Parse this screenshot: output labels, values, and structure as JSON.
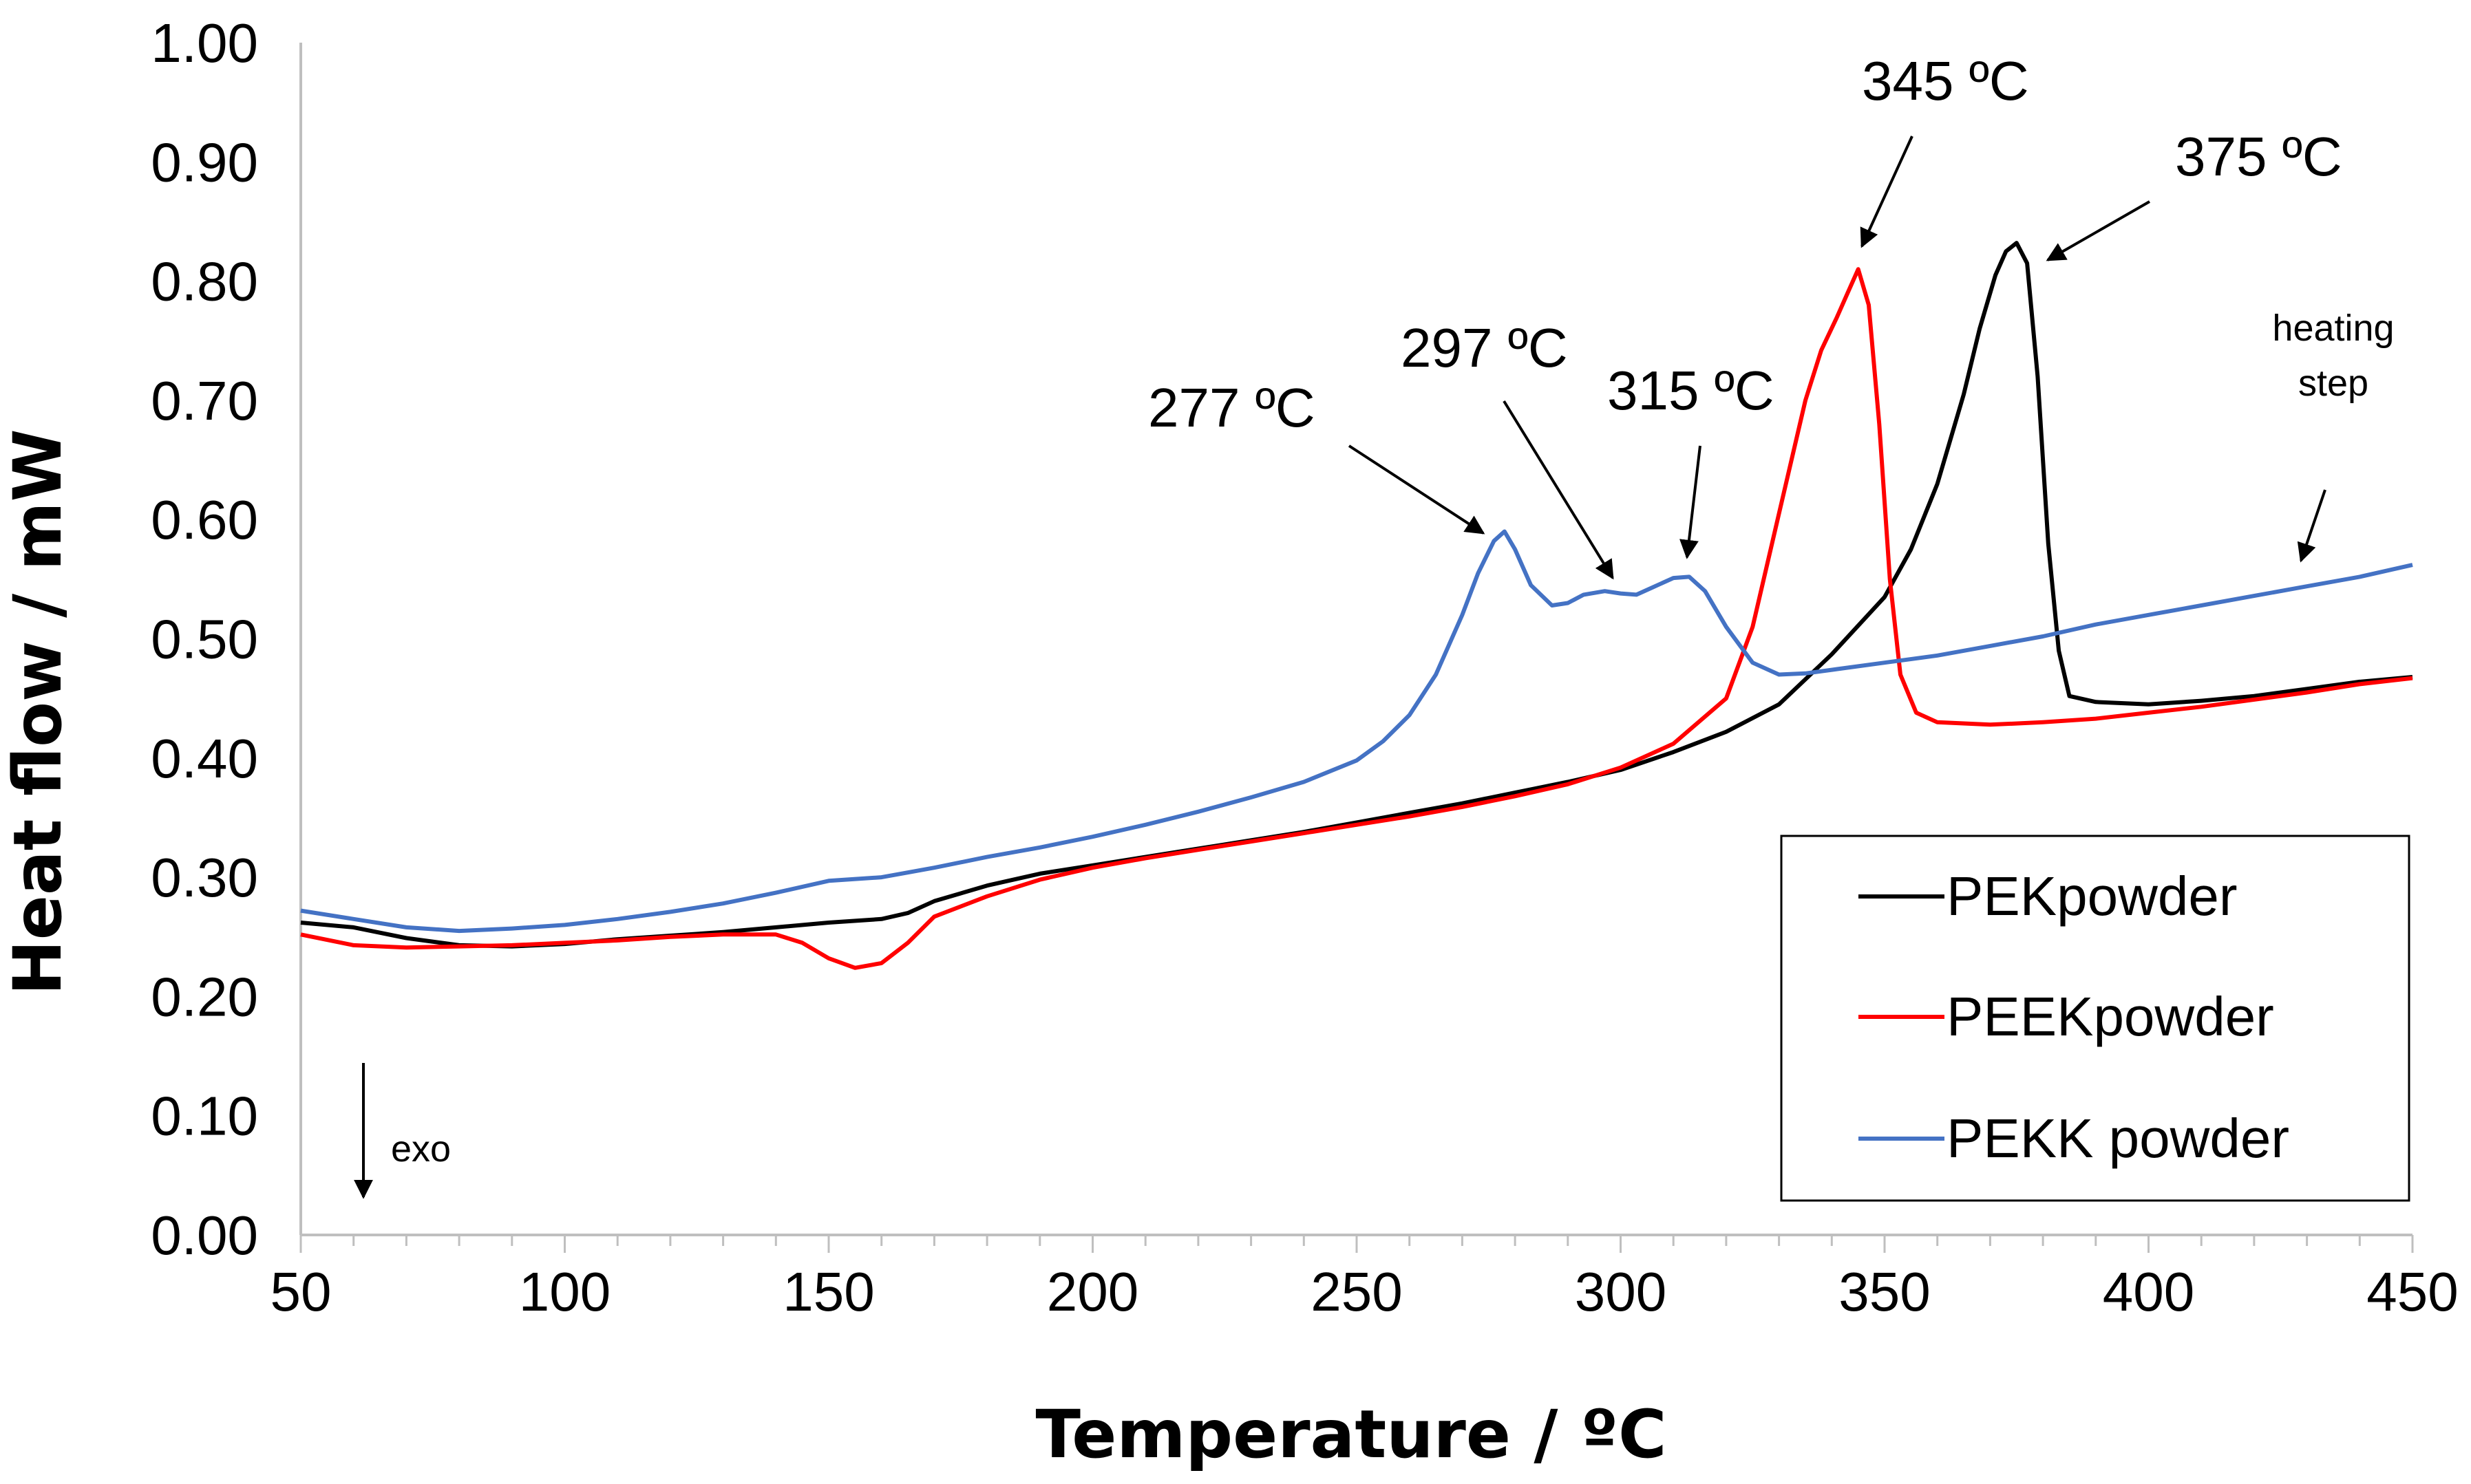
{
  "chart_data": {
    "type": "line",
    "xlabel": "Temperature / ºC",
    "ylabel": "Heat flow / mW",
    "xlim": [
      50,
      450
    ],
    "ylim": [
      0.0,
      1.0
    ],
    "x_ticks": [
      "50",
      "100",
      "150",
      "200",
      "250",
      "300",
      "350",
      "400",
      "450"
    ],
    "y_ticks": [
      "0.00",
      "0.10",
      "0.20",
      "0.30",
      "0.40",
      "0.50",
      "0.60",
      "0.70",
      "0.80",
      "0.90",
      "1.00"
    ],
    "grid": false,
    "legend_position": "bottom-right",
    "series": [
      {
        "name": "PEKpowder",
        "color": "#000000",
        "x": [
          50,
          60,
          70,
          80,
          90,
          100,
          110,
          120,
          130,
          140,
          150,
          160,
          165,
          170,
          180,
          190,
          200,
          210,
          220,
          230,
          240,
          250,
          260,
          270,
          280,
          290,
          300,
          310,
          320,
          330,
          340,
          350,
          355,
          360,
          365,
          368,
          371,
          373,
          375,
          377,
          379,
          381,
          383,
          385,
          390,
          400,
          410,
          420,
          430,
          440,
          450
        ],
        "y": [
          0.262,
          0.258,
          0.249,
          0.243,
          0.242,
          0.244,
          0.248,
          0.251,
          0.254,
          0.258,
          0.262,
          0.265,
          0.27,
          0.28,
          0.293,
          0.303,
          0.31,
          0.317,
          0.324,
          0.331,
          0.338,
          0.346,
          0.354,
          0.362,
          0.371,
          0.38,
          0.39,
          0.405,
          0.422,
          0.445,
          0.487,
          0.535,
          0.575,
          0.63,
          0.705,
          0.76,
          0.805,
          0.825,
          0.832,
          0.815,
          0.72,
          0.58,
          0.49,
          0.452,
          0.447,
          0.445,
          0.448,
          0.452,
          0.458,
          0.464,
          0.468
        ]
      },
      {
        "name": "PEEKpowder",
        "color": "#ff0000",
        "x": [
          50,
          60,
          70,
          80,
          90,
          100,
          110,
          120,
          130,
          140,
          145,
          150,
          155,
          160,
          165,
          170,
          180,
          190,
          200,
          210,
          220,
          230,
          240,
          250,
          260,
          270,
          280,
          290,
          300,
          310,
          320,
          325,
          330,
          335,
          338,
          341,
          343,
          345,
          347,
          349,
          351,
          353,
          356,
          360,
          370,
          380,
          390,
          400,
          410,
          420,
          430,
          440,
          450
        ],
        "y": [
          0.252,
          0.243,
          0.241,
          0.242,
          0.243,
          0.245,
          0.247,
          0.25,
          0.252,
          0.252,
          0.245,
          0.232,
          0.224,
          0.228,
          0.245,
          0.267,
          0.284,
          0.298,
          0.308,
          0.316,
          0.323,
          0.33,
          0.337,
          0.344,
          0.351,
          0.359,
          0.368,
          0.378,
          0.392,
          0.412,
          0.45,
          0.51,
          0.605,
          0.7,
          0.742,
          0.77,
          0.79,
          0.81,
          0.78,
          0.68,
          0.55,
          0.47,
          0.438,
          0.43,
          0.428,
          0.43,
          0.433,
          0.438,
          0.443,
          0.449,
          0.455,
          0.462,
          0.467
        ]
      },
      {
        "name": "PEKK powder",
        "color": "#4472c4",
        "x": [
          50,
          60,
          70,
          80,
          90,
          100,
          110,
          120,
          130,
          140,
          150,
          160,
          170,
          180,
          190,
          200,
          210,
          220,
          230,
          240,
          250,
          255,
          260,
          265,
          270,
          273,
          276,
          278,
          280,
          283,
          287,
          290,
          293,
          297,
          300,
          303,
          306,
          310,
          313,
          316,
          320,
          325,
          330,
          335,
          340,
          350,
          360,
          370,
          380,
          390,
          400,
          410,
          420,
          430,
          440,
          450
        ],
        "y": [
          0.272,
          0.265,
          0.258,
          0.255,
          0.257,
          0.26,
          0.265,
          0.271,
          0.278,
          0.287,
          0.297,
          0.3,
          0.308,
          0.317,
          0.325,
          0.334,
          0.344,
          0.355,
          0.367,
          0.38,
          0.398,
          0.414,
          0.436,
          0.47,
          0.52,
          0.555,
          0.582,
          0.59,
          0.575,
          0.545,
          0.528,
          0.53,
          0.537,
          0.54,
          0.538,
          0.537,
          0.543,
          0.551,
          0.552,
          0.54,
          0.51,
          0.48,
          0.47,
          0.471,
          0.474,
          0.48,
          0.486,
          0.494,
          0.502,
          0.512,
          0.52,
          0.528,
          0.536,
          0.544,
          0.552,
          0.562
        ]
      }
    ],
    "annotations": [
      {
        "text": "277 ºC",
        "x": 277,
        "y": 0.59
      },
      {
        "text": "297 ºC",
        "x": 297,
        "y": 0.54
      },
      {
        "text": "315 ºC",
        "x": 313,
        "y": 0.552
      },
      {
        "text": "345 ºC",
        "x": 345,
        "y": 0.81
      },
      {
        "text": "375 ºC",
        "x": 373,
        "y": 0.832
      },
      {
        "text": "heating",
        "x": 430,
        "y": 0.55
      },
      {
        "text": "step",
        "x": 430,
        "y": 0.55
      },
      {
        "text": "exo",
        "x": 62,
        "y": 0.03
      }
    ]
  }
}
